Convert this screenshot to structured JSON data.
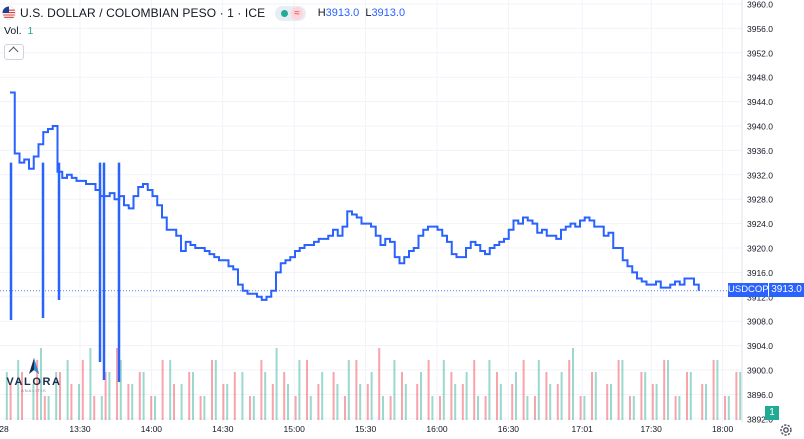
{
  "legend": {
    "title": "U.S. DOLLAR / COLOMBIAN PESO · 1 · ICE",
    "high_label": "H",
    "high_value": "3913.0",
    "low_label": "L",
    "low_value": "3913.0",
    "status_icons": [
      "market-open-dot-icon",
      "delayed-wave-icon"
    ]
  },
  "volume_legend": {
    "label": "Vol.",
    "value": "1"
  },
  "symbol_badge": "USDCOP",
  "price_badge": "3913.0",
  "volume_badge": "1",
  "logo": {
    "name": "VALORA",
    "sub": "ANALITIK"
  },
  "colors": {
    "price": "#2962ff",
    "up": "#22ab94",
    "down": "#f23645",
    "grid": "#f0f3fa",
    "text": "#131722",
    "axis": "#787b86"
  },
  "chart_data": {
    "type": "line",
    "title": "U.S. DOLLAR / COLOMBIAN PESO · 1 · ICE",
    "ylim": [
      3892.0,
      3960.0
    ],
    "y_ticks": [
      "3960.0",
      "3956.0",
      "3952.0",
      "3948.0",
      "3944.0",
      "3940.0",
      "3936.0",
      "3932.0",
      "3928.0",
      "3924.0",
      "3920.0",
      "3916.0",
      "3912.0",
      "3908.0",
      "3904.0",
      "3900.0",
      "3896.0",
      "3892.0"
    ],
    "x_ticks": [
      {
        "t": 0,
        "label": "28"
      },
      {
        "t": 75,
        "label": "13:30"
      },
      {
        "t": 105,
        "label": "14:00"
      },
      {
        "t": 135,
        "label": "14:30"
      },
      {
        "t": 165,
        "label": "15:00"
      },
      {
        "t": 195,
        "label": "15:30"
      },
      {
        "t": 225,
        "label": "16:00"
      },
      {
        "t": 255,
        "label": "16:30"
      },
      {
        "t": 286,
        "label": "17:01"
      },
      {
        "t": 315,
        "label": "17:30"
      },
      {
        "t": 345,
        "label": "18:00"
      }
    ],
    "x_range": [
      49,
      350
    ],
    "last_price": 3913.0,
    "series": [
      {
        "values": [
          [
            50,
            3945.5
          ],
          [
            51,
            3935.5
          ],
          [
            52,
            3934
          ],
          [
            53,
            3934.5
          ],
          [
            54,
            3933
          ],
          [
            55,
            3935
          ],
          [
            56,
            3937
          ],
          [
            57,
            3939
          ],
          [
            58,
            3939.5
          ],
          [
            59,
            3940
          ],
          [
            60,
            3932.5
          ],
          [
            61,
            3931.5
          ],
          [
            62,
            3932
          ],
          [
            63,
            3931.5
          ],
          [
            64,
            3931
          ],
          [
            65,
            3931
          ],
          [
            66,
            3930.5
          ],
          [
            67,
            3930.5
          ],
          [
            68,
            3929.5
          ],
          [
            69,
            3928.5
          ],
          [
            70,
            3928.5
          ],
          [
            71,
            3929
          ],
          [
            72,
            3928
          ],
          [
            73,
            3928.5
          ],
          [
            74,
            3927
          ],
          [
            75,
            3926.5
          ],
          [
            76,
            3928.5
          ],
          [
            77,
            3930
          ],
          [
            78,
            3930.5
          ],
          [
            79,
            3929.5
          ],
          [
            80,
            3928.5
          ],
          [
            81,
            3927
          ],
          [
            82,
            3925
          ],
          [
            83,
            3923
          ],
          [
            84,
            3923
          ],
          [
            85,
            3922
          ],
          [
            86,
            3919.5
          ],
          [
            87,
            3921
          ],
          [
            88,
            3920.5
          ],
          [
            89,
            3920
          ],
          [
            90,
            3920
          ],
          [
            91,
            3919.5
          ],
          [
            92,
            3919
          ],
          [
            93,
            3918.5
          ],
          [
            94,
            3918
          ],
          [
            95,
            3918
          ],
          [
            96,
            3917
          ],
          [
            97,
            3916.5
          ],
          [
            98,
            3914
          ],
          [
            99,
            3913
          ],
          [
            100,
            3912.5
          ],
          [
            101,
            3912.5
          ],
          [
            102,
            3912
          ],
          [
            103,
            3911.5
          ],
          [
            104,
            3912
          ],
          [
            105,
            3913
          ],
          [
            106,
            3916
          ],
          [
            107,
            3917.5
          ],
          [
            108,
            3918
          ],
          [
            109,
            3918.5
          ],
          [
            110,
            3919.5
          ],
          [
            111,
            3920
          ],
          [
            112,
            3920.5
          ],
          [
            113,
            3920.5
          ],
          [
            114,
            3921
          ],
          [
            115,
            3921.5
          ],
          [
            116,
            3921.5
          ],
          [
            117,
            3922
          ],
          [
            118,
            3923
          ],
          [
            119,
            3922
          ],
          [
            120,
            3923.5
          ],
          [
            121,
            3926
          ],
          [
            122,
            3925.5
          ],
          [
            123,
            3925
          ],
          [
            124,
            3924
          ],
          [
            125,
            3924
          ],
          [
            126,
            3923.5
          ],
          [
            127,
            3922
          ],
          [
            128,
            3920.5
          ],
          [
            129,
            3921.5
          ],
          [
            130,
            3921
          ],
          [
            131,
            3918.5
          ],
          [
            132,
            3917.5
          ],
          [
            133,
            3918.5
          ],
          [
            134,
            3919.5
          ],
          [
            135,
            3920
          ],
          [
            136,
            3922
          ],
          [
            137,
            3923
          ],
          [
            138,
            3923.5
          ],
          [
            139,
            3923.5
          ],
          [
            140,
            3923
          ],
          [
            141,
            3922
          ],
          [
            142,
            3921
          ],
          [
            143,
            3919
          ],
          [
            144,
            3918.5
          ],
          [
            145,
            3918.5
          ],
          [
            146,
            3920
          ],
          [
            147,
            3921
          ],
          [
            148,
            3920.5
          ],
          [
            149,
            3919.5
          ],
          [
            150,
            3919
          ],
          [
            151,
            3920
          ],
          [
            152,
            3920.5
          ],
          [
            153,
            3921
          ],
          [
            154,
            3921.5
          ],
          [
            155,
            3923
          ],
          [
            156,
            3924.5
          ],
          [
            157,
            3924
          ],
          [
            158,
            3925
          ],
          [
            159,
            3924.5
          ],
          [
            160,
            3924
          ],
          [
            161,
            3922.5
          ],
          [
            162,
            3923
          ],
          [
            163,
            3922
          ],
          [
            164,
            3922
          ],
          [
            165,
            3921.5
          ],
          [
            166,
            3923
          ],
          [
            167,
            3923.5
          ],
          [
            168,
            3924
          ],
          [
            169,
            3923.5
          ],
          [
            170,
            3924.5
          ],
          [
            171,
            3925
          ],
          [
            172,
            3924.5
          ],
          [
            173,
            3923.5
          ],
          [
            174,
            3923.5
          ],
          [
            175,
            3922
          ],
          [
            176,
            3922.5
          ],
          [
            177,
            3920
          ],
          [
            178,
            3920
          ],
          [
            179,
            3918
          ],
          [
            180,
            3917
          ],
          [
            181,
            3916
          ],
          [
            182,
            3915
          ],
          [
            183,
            3914.5
          ],
          [
            184,
            3914
          ],
          [
            185,
            3914
          ],
          [
            186,
            3914.5
          ],
          [
            187,
            3913.5
          ],
          [
            188,
            3913.5
          ],
          [
            189,
            3914
          ],
          [
            190,
            3914.5
          ],
          [
            191,
            3914
          ],
          [
            192,
            3915
          ],
          [
            193,
            3915
          ],
          [
            194,
            3914
          ],
          [
            195,
            3913
          ]
        ]
      }
    ],
    "volume": {
      "up": [
        [
          1,
          4
        ],
        [
          4,
          5
        ],
        [
          8,
          3
        ],
        [
          10,
          6
        ],
        [
          12,
          2
        ],
        [
          14,
          4
        ],
        [
          17,
          5
        ],
        [
          20,
          3
        ],
        [
          23,
          6
        ],
        [
          26,
          2
        ],
        [
          28,
          4
        ],
        [
          31,
          5
        ],
        [
          34,
          3
        ],
        [
          37,
          4
        ],
        [
          40,
          2
        ],
        [
          44,
          5
        ],
        [
          47,
          3
        ],
        [
          50,
          4
        ],
        [
          53,
          2
        ],
        [
          56,
          5
        ],
        [
          59,
          3
        ],
        [
          63,
          4
        ],
        [
          66,
          2
        ],
        [
          69,
          4
        ],
        [
          72,
          6
        ],
        [
          75,
          3
        ],
        [
          78,
          5
        ],
        [
          81,
          2
        ],
        [
          84,
          4
        ],
        [
          88,
          3
        ],
        [
          91,
          5
        ],
        [
          94,
          3
        ],
        [
          97,
          4
        ],
        [
          100,
          2
        ],
        [
          103,
          5
        ],
        [
          106,
          3
        ],
        [
          110,
          4
        ],
        [
          113,
          2
        ],
        [
          116,
          5
        ],
        [
          119,
          3
        ],
        [
          122,
          4
        ],
        [
          125,
          2
        ],
        [
          128,
          5
        ],
        [
          131,
          3
        ],
        [
          135,
          4
        ],
        [
          138,
          2
        ],
        [
          141,
          5
        ],
        [
          144,
          3
        ],
        [
          147,
          4
        ],
        [
          150,
          6
        ],
        [
          153,
          2
        ],
        [
          156,
          4
        ],
        [
          160,
          3
        ],
        [
          163,
          5
        ],
        [
          166,
          2
        ],
        [
          169,
          4
        ],
        [
          172,
          3
        ],
        [
          175,
          5
        ],
        [
          178,
          2
        ],
        [
          181,
          4
        ],
        [
          185,
          3
        ],
        [
          188,
          5
        ],
        [
          191,
          2
        ],
        [
          194,
          4
        ]
      ],
      "down": [
        [
          2,
          3
        ],
        [
          5,
          4
        ],
        [
          9,
          5
        ],
        [
          11,
          2
        ],
        [
          15,
          4
        ],
        [
          18,
          3
        ],
        [
          21,
          5
        ],
        [
          24,
          2
        ],
        [
          27,
          4
        ],
        [
          30,
          6
        ],
        [
          33,
          3
        ],
        [
          36,
          4
        ],
        [
          39,
          2
        ],
        [
          42,
          5
        ],
        [
          45,
          3
        ],
        [
          49,
          4
        ],
        [
          52,
          2
        ],
        [
          55,
          5
        ],
        [
          58,
          3
        ],
        [
          61,
          4
        ],
        [
          65,
          2
        ],
        [
          68,
          5
        ],
        [
          71,
          3
        ],
        [
          74,
          4
        ],
        [
          77,
          2
        ],
        [
          80,
          5
        ],
        [
          83,
          3
        ],
        [
          87,
          4
        ],
        [
          90,
          2
        ],
        [
          93,
          5
        ],
        [
          96,
          3
        ],
        [
          99,
          6
        ],
        [
          102,
          2
        ],
        [
          105,
          4
        ],
        [
          109,
          3
        ],
        [
          112,
          5
        ],
        [
          115,
          2
        ],
        [
          118,
          4
        ],
        [
          121,
          3
        ],
        [
          124,
          5
        ],
        [
          127,
          2
        ],
        [
          130,
          4
        ],
        [
          134,
          3
        ],
        [
          137,
          5
        ],
        [
          140,
          2
        ],
        [
          143,
          4
        ],
        [
          146,
          3
        ],
        [
          149,
          5
        ],
        [
          152,
          2
        ],
        [
          155,
          4
        ],
        [
          159,
          3
        ],
        [
          162,
          5
        ],
        [
          165,
          2
        ],
        [
          168,
          4
        ],
        [
          171,
          3
        ],
        [
          174,
          5
        ],
        [
          177,
          2
        ],
        [
          180,
          4
        ],
        [
          184,
          3
        ],
        [
          187,
          5
        ],
        [
          190,
          2
        ],
        [
          193,
          4
        ]
      ]
    }
  }
}
